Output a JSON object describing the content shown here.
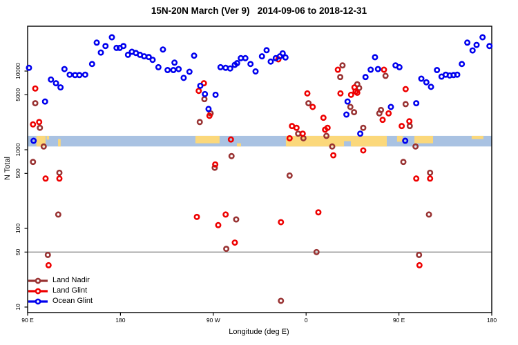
{
  "title": "15N-20N March (Ver 9)   2014-09-06 to 2018-12-31",
  "axes": {
    "x_label": "Longitude (deg E)",
    "y_label": "N Total",
    "x_ticks": [
      {
        "lon": 90,
        "label": "90 E"
      },
      {
        "lon": 180,
        "label": "180"
      },
      {
        "lon": 270,
        "label": "90 W"
      },
      {
        "lon": 360,
        "label": "0"
      },
      {
        "lon": 450,
        "label": "90 E"
      },
      {
        "lon": 540,
        "label": "180"
      }
    ],
    "y_ticks": [
      {
        "v": 10,
        "label": "10"
      },
      {
        "v": 50,
        "label": "50"
      },
      {
        "v": 100,
        "label": "100"
      },
      {
        "v": 500,
        "label": "500"
      },
      {
        "v": 1000,
        "label": "1000"
      },
      {
        "v": 5000,
        "label": "5000"
      },
      {
        "v": 10000,
        "label": "10000"
      }
    ]
  },
  "legend": {
    "items": [
      {
        "label": "Land Nadir",
        "color": "#993333"
      },
      {
        "label": "Land Glint",
        "color": "#ee0000"
      },
      {
        "label": "Ocean Glint",
        "color": "#0000ee"
      }
    ]
  },
  "chart_data": {
    "type": "scatter",
    "title": "15N-20N March (Ver 9)   2014-09-06 to 2018-12-31",
    "xlabel": "Longitude (deg E)",
    "ylabel": "N Total",
    "x_axis_note": "longitude in continuous deg E from 90 to 540 (90E -> 180 -> 90W -> 0 -> 90E -> 180)",
    "x_range": [
      90,
      540
    ],
    "y_scale": "log10",
    "y_range": [
      8.5,
      35000
    ],
    "reference_line": {
      "value": 50,
      "color": "#8c8c8c"
    },
    "coverage_band": {
      "n_top": 1500,
      "n_bottom": 1100,
      "ocean_color": "#a9c2e2",
      "land_color": "#fbd87b",
      "land_segments": [
        {
          "lon0": 98.5,
          "lon1": 107.4,
          "f0": 0,
          "f1": 1
        },
        {
          "lon0": 108.5,
          "lon1": 110.8,
          "f0": 0,
          "f1": 0.35
        },
        {
          "lon0": 119.5,
          "lon1": 122.0,
          "f0": 0.3,
          "f1": 1
        },
        {
          "lon0": 252.7,
          "lon1": 276.1,
          "f0": 0,
          "f1": 0.7
        },
        {
          "lon0": 292.9,
          "lon1": 296.9,
          "f0": 0.7,
          "f1": 1
        },
        {
          "lon0": 340.4,
          "lon1": 396.7,
          "f0": 0,
          "f1": 1
        },
        {
          "lon0": 396.7,
          "lon1": 403.4,
          "f0": 0,
          "f1": 0.5
        },
        {
          "lon0": 403.4,
          "lon1": 438.2,
          "f0": 0,
          "f1": 1
        },
        {
          "lon0": 448.2,
          "lon1": 453.6,
          "f0": 0,
          "f1": 0.55
        },
        {
          "lon0": 465.0,
          "lon1": 483.1,
          "f0": 0,
          "f1": 0.7
        },
        {
          "lon0": 520.5,
          "lon1": 531.9,
          "f0": 0,
          "f1": 0.3
        }
      ]
    },
    "series": [
      {
        "name": "Land Nadir",
        "color": "#993333",
        "points": [
          [
            97.4,
            3900
          ],
          [
            101.9,
            1900
          ],
          [
            105.6,
            1100
          ],
          [
            95.2,
            700
          ],
          [
            120.8,
            510
          ],
          [
            119.7,
            150
          ],
          [
            109.6,
            46
          ],
          [
            261.4,
            4400
          ],
          [
            256.9,
            2250
          ],
          [
            267.4,
            2900
          ],
          [
            271.4,
            590
          ],
          [
            287.7,
            830
          ],
          [
            282.6,
            55
          ],
          [
            292.2,
            130
          ],
          [
            344,
            470
          ],
          [
            335.6,
            12
          ],
          [
            352.3,
            1600
          ],
          [
            357.4,
            1400
          ],
          [
            362.3,
            3900
          ],
          [
            370.1,
            50
          ],
          [
            379.7,
            1500
          ],
          [
            385.3,
            1100
          ],
          [
            393.1,
            8400
          ],
          [
            395.3,
            11800
          ],
          [
            402.9,
            3500
          ],
          [
            406.5,
            3000
          ],
          [
            409.6,
            6800
          ],
          [
            411.4,
            6100
          ],
          [
            415.4,
            1900
          ],
          [
            431,
            2900
          ],
          [
            432.6,
            3200
          ],
          [
            437,
            8700
          ],
          [
            456.5,
            3800
          ],
          [
            454.3,
            700
          ],
          [
            460.5,
            2000
          ],
          [
            466.1,
            1100
          ],
          [
            479.1,
            150
          ],
          [
            480.2,
            510
          ],
          [
            469.5,
            46
          ]
        ]
      },
      {
        "name": "Land Glint",
        "color": "#ee0000",
        "points": [
          [
            97.4,
            6000
          ],
          [
            95.2,
            2100
          ],
          [
            101.2,
            2250
          ],
          [
            107.4,
            430
          ],
          [
            110.3,
            34
          ],
          [
            120.8,
            430
          ],
          [
            255.9,
            5600
          ],
          [
            260.9,
            7000
          ],
          [
            266.3,
            2700
          ],
          [
            287.1,
            1350
          ],
          [
            271.9,
            650
          ],
          [
            254.1,
            140
          ],
          [
            274.8,
            110
          ],
          [
            282,
            150
          ],
          [
            290.9,
            66
          ],
          [
            335.6,
            120
          ],
          [
            333.1,
            14100
          ],
          [
            344,
            1400
          ],
          [
            346.3,
            2000
          ],
          [
            350.7,
            1900
          ],
          [
            356.7,
            1600
          ],
          [
            361.2,
            5200
          ],
          [
            366.4,
            3500
          ],
          [
            371.9,
            160
          ],
          [
            376.8,
            2550
          ],
          [
            378.4,
            1800
          ],
          [
            380.8,
            1900
          ],
          [
            386.4,
            850
          ],
          [
            390.8,
            10400
          ],
          [
            393.3,
            5200
          ],
          [
            403.6,
            5000
          ],
          [
            406.9,
            6200
          ],
          [
            408,
            5500
          ],
          [
            409.6,
            5300
          ],
          [
            415.4,
            980
          ],
          [
            435.5,
            10400
          ],
          [
            440,
            2900
          ],
          [
            434.2,
            2400
          ],
          [
            452.7,
            2000
          ],
          [
            456.5,
            5900
          ],
          [
            460.1,
            2300
          ],
          [
            466.8,
            430
          ],
          [
            469.9,
            34
          ],
          [
            480.2,
            430
          ]
        ]
      },
      {
        "name": "Ocean Glint",
        "color": "#0000ee",
        "points": [
          [
            91.3,
            11000
          ],
          [
            95.8,
            1300
          ],
          [
            106.9,
            4100
          ],
          [
            112.6,
            7800
          ],
          [
            117.5,
            7000
          ],
          [
            121.9,
            6200
          ],
          [
            125.7,
            10600
          ],
          [
            130.8,
            9000
          ],
          [
            136,
            8900
          ],
          [
            140.2,
            8900
          ],
          [
            145.8,
            9000
          ],
          [
            152.5,
            12300
          ],
          [
            157,
            23000
          ],
          [
            161,
            17200
          ],
          [
            165.5,
            20800
          ],
          [
            171.7,
            26900
          ],
          [
            176.2,
            19700
          ],
          [
            179.3,
            19700
          ],
          [
            182.9,
            20800
          ],
          [
            187.3,
            16100
          ],
          [
            191.1,
            17600
          ],
          [
            194.9,
            17000
          ],
          [
            198.9,
            16100
          ],
          [
            203,
            15400
          ],
          [
            207.4,
            15100
          ],
          [
            211.2,
            13900
          ],
          [
            216.8,
            11200
          ],
          [
            221.2,
            18800
          ],
          [
            225.7,
            10300
          ],
          [
            231.3,
            10300
          ],
          [
            232.4,
            12800
          ],
          [
            236.4,
            10600
          ],
          [
            241.3,
            8200
          ],
          [
            246.9,
            9800
          ],
          [
            251.4,
            15700
          ],
          [
            257.4,
            6500
          ],
          [
            261.9,
            5100
          ],
          [
            265.4,
            3300
          ],
          [
            272.2,
            5000
          ],
          [
            277,
            11200
          ],
          [
            282,
            11000
          ],
          [
            286.4,
            10800
          ],
          [
            290.9,
            12000
          ],
          [
            293.1,
            12600
          ],
          [
            296.7,
            14600
          ],
          [
            301.1,
            14600
          ],
          [
            306.1,
            12300
          ],
          [
            311,
            9900
          ],
          [
            317.2,
            15400
          ],
          [
            321.7,
            18400
          ],
          [
            325.7,
            13200
          ],
          [
            330.6,
            14600
          ],
          [
            334.6,
            15400
          ],
          [
            337.3,
            16800
          ],
          [
            340,
            14900
          ],
          [
            399.1,
            2800
          ],
          [
            400.2,
            4100
          ],
          [
            412.5,
            1600
          ],
          [
            417.6,
            8400
          ],
          [
            422.6,
            10400
          ],
          [
            426.8,
            15000
          ],
          [
            429.7,
            10600
          ],
          [
            442.2,
            3500
          ],
          [
            446.7,
            11800
          ],
          [
            450.5,
            11200
          ],
          [
            456.1,
            1300
          ],
          [
            466.8,
            3900
          ],
          [
            471.7,
            8000
          ],
          [
            476.6,
            7200
          ],
          [
            481.1,
            6300
          ],
          [
            486.9,
            10300
          ],
          [
            491.3,
            8500
          ],
          [
            495.4,
            9000
          ],
          [
            499.2,
            8800
          ],
          [
            503,
            8900
          ],
          [
            506.5,
            9000
          ],
          [
            511,
            12300
          ],
          [
            516.3,
            23000
          ],
          [
            521.4,
            18300
          ],
          [
            525.3,
            21500
          ],
          [
            531.1,
            26900
          ],
          [
            537.8,
            20800
          ]
        ]
      }
    ]
  }
}
